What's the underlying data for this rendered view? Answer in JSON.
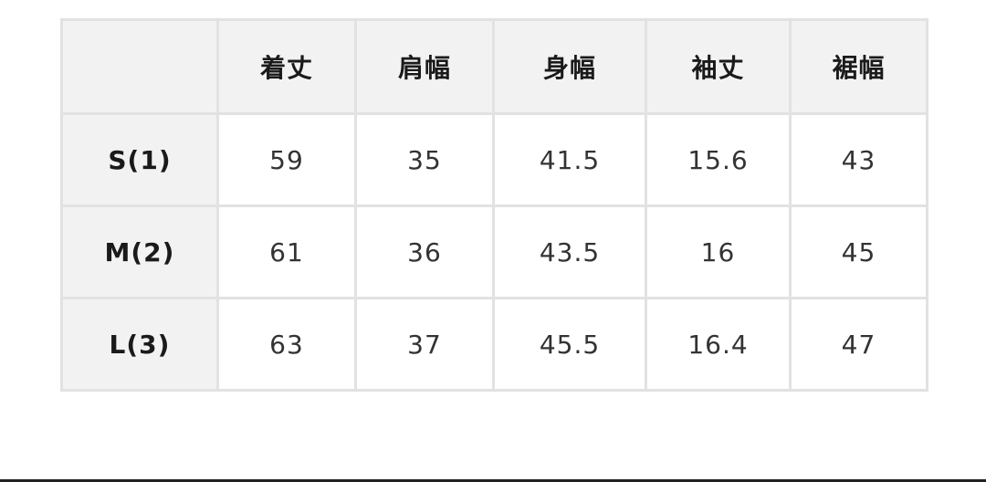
{
  "size_table": {
    "headers": [
      "",
      "着丈",
      "肩幅",
      "身幅",
      "袖丈",
      "裾幅"
    ],
    "rows": [
      {
        "size": "S(1)",
        "values": [
          "59",
          "35",
          "41.5",
          "15.6",
          "43"
        ]
      },
      {
        "size": "M(2)",
        "values": [
          "61",
          "36",
          "43.5",
          "16",
          "45"
        ]
      },
      {
        "size": "L(3)",
        "values": [
          "63",
          "37",
          "45.5",
          "16.4",
          "47"
        ]
      }
    ]
  },
  "colors": {
    "header_bg": "#f2f2f2",
    "border": "#e2e2e2",
    "text": "#333333"
  }
}
